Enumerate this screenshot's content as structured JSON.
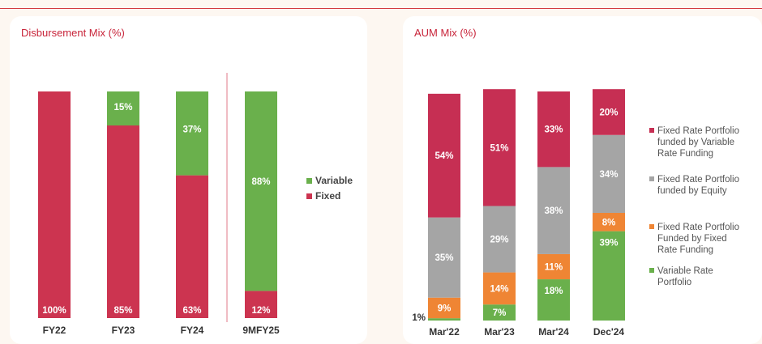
{
  "charts": {
    "disbursement": {
      "title": "Disbursement Mix (%)",
      "chart_data": {
        "type": "bar",
        "stacked": true,
        "categories": [
          "FY22",
          "FY23",
          "FY24",
          "9MFY25"
        ],
        "series": [
          {
            "name": "Fixed",
            "values": [
              100,
              85,
              63,
              12
            ],
            "labels": [
              "100%",
              "85%",
              "63%",
              "12%"
            ],
            "color": "#cc3450"
          },
          {
            "name": "Variable",
            "values": [
              0,
              15,
              37,
              88
            ],
            "labels": [
              "",
              "15%",
              "37%",
              "88%"
            ],
            "color": "#6ab04c"
          }
        ],
        "legend": [
          {
            "name": "Variable",
            "color": "#6ab04c"
          },
          {
            "name": "Fixed",
            "color": "#cc3450"
          }
        ],
        "legend_position": "right",
        "ylim": [
          0,
          100
        ],
        "grid": false
      }
    },
    "aum": {
      "title": "AUM Mix (%)",
      "chart_data": {
        "type": "bar",
        "stacked": true,
        "categories": [
          "Mar'22",
          "Mar'23",
          "Mar'24",
          "Dec'24"
        ],
        "series": [
          {
            "name": "Variable Rate Portfolio",
            "values": [
              1,
              7,
              18,
              39
            ],
            "labels": [
              "1%",
              "7%",
              "18%",
              "39%"
            ],
            "color": "#6ab04c"
          },
          {
            "name": "Fixed Rate Portfolio Funded by Fixed Rate Funding",
            "values": [
              9,
              14,
              11,
              8
            ],
            "labels": [
              "9%",
              "14%",
              "11%",
              "8%"
            ],
            "color": "#ef8534"
          },
          {
            "name": "Fixed Rate Portfolio funded by Equity",
            "values": [
              35,
              29,
              38,
              34
            ],
            "labels": [
              "35%",
              "29%",
              "38%",
              "34%"
            ],
            "color": "#a5a5a5"
          },
          {
            "name": "Fixed Rate Portfolio funded by Variable Rate Funding",
            "values": [
              54,
              51,
              33,
              20
            ],
            "labels": [
              "54%",
              "51%",
              "33%",
              "20%"
            ],
            "color": "#c62f53"
          }
        ],
        "legend": [
          {
            "lines": [
              "Fixed Rate Portfolio",
              "funded by Variable",
              "Rate Funding"
            ],
            "color": "#c62f53"
          },
          {
            "lines": [
              "Fixed Rate Portfolio",
              "funded by Equity"
            ],
            "color": "#a5a5a5"
          },
          {
            "lines": [
              "Fixed Rate Portfolio",
              "Funded by Fixed",
              "Rate Funding"
            ],
            "color": "#ef8534"
          },
          {
            "lines": [
              "Variable Rate",
              "Portfolio"
            ],
            "color": "#6ab04c"
          }
        ],
        "legend_position": "right",
        "ylim": [
          0,
          100
        ],
        "grid": false
      }
    }
  }
}
